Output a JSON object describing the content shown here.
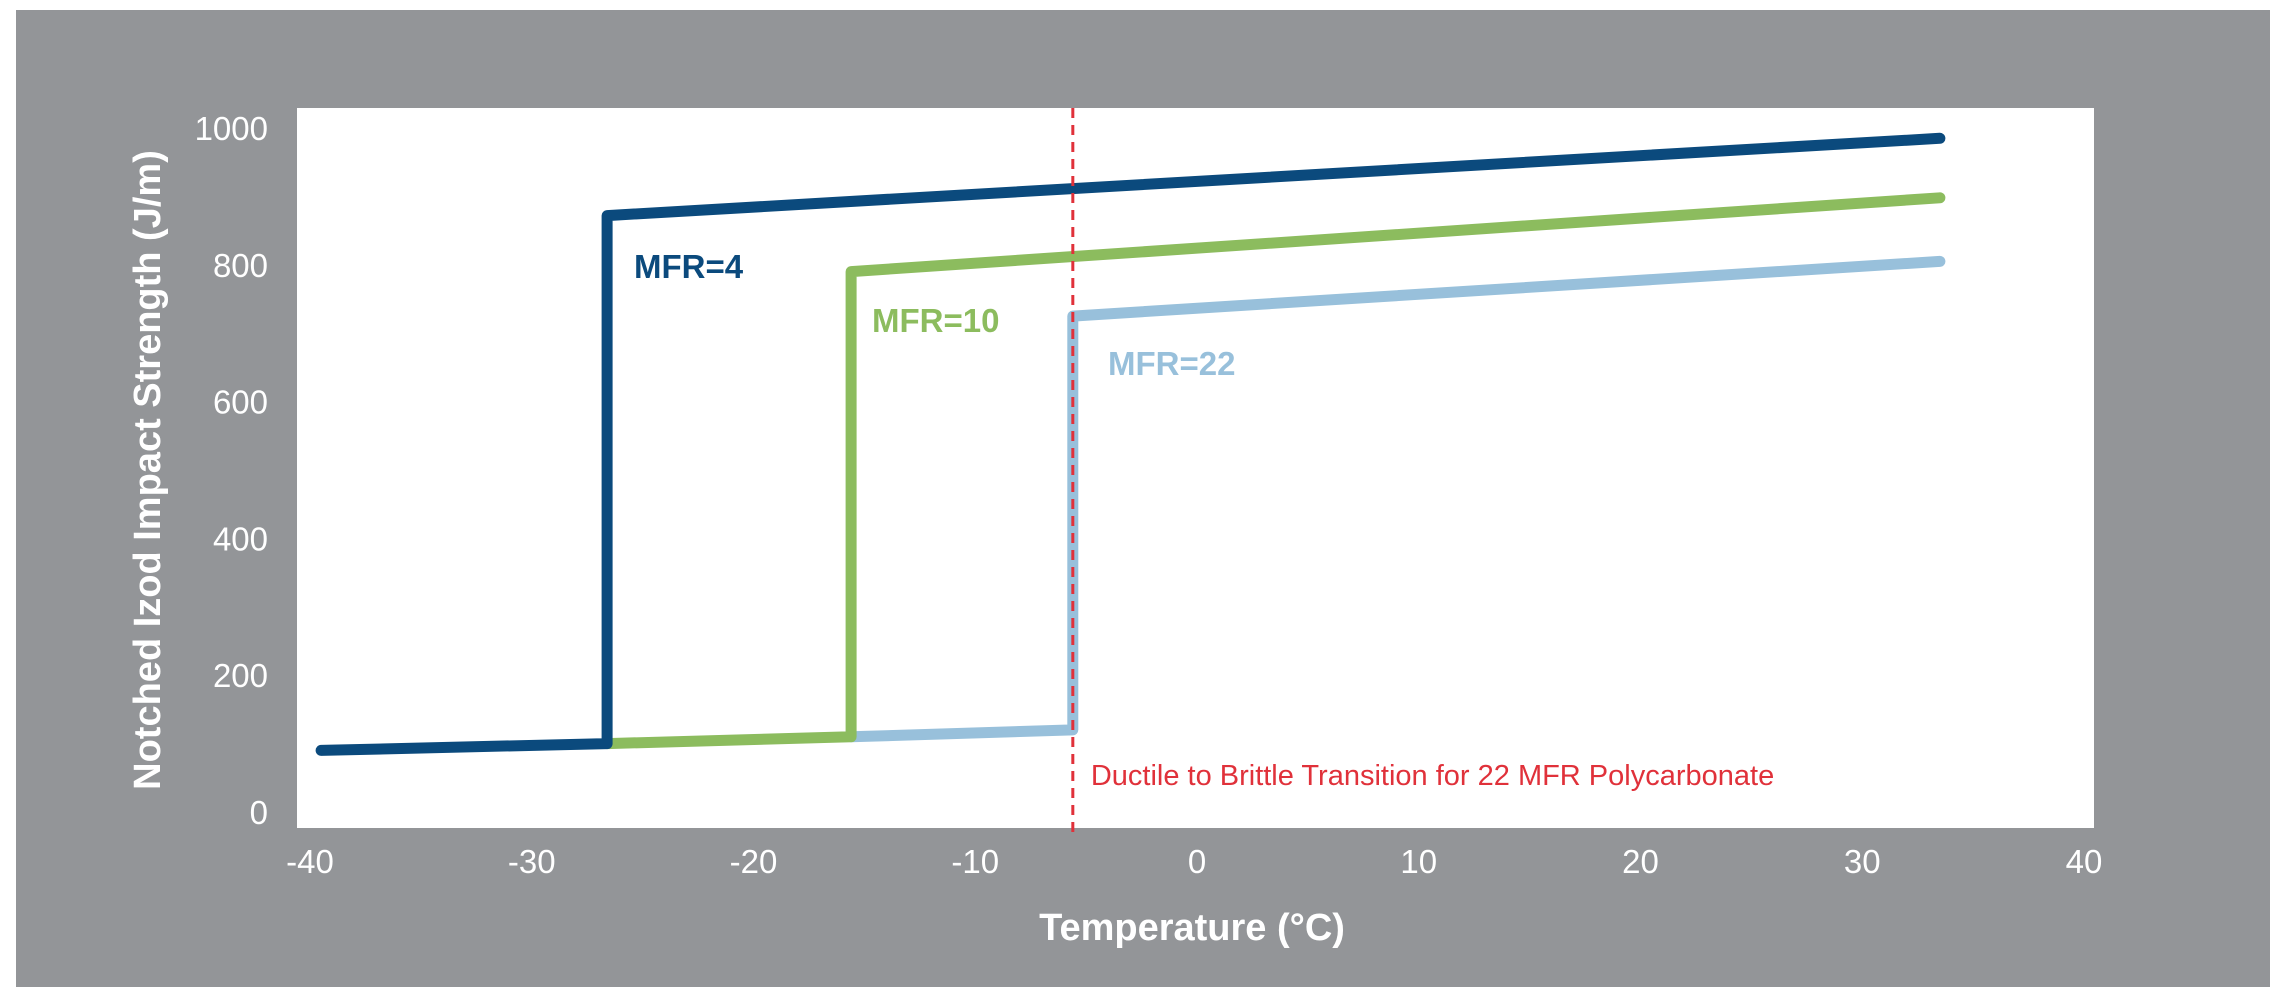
{
  "chart_data": {
    "type": "line",
    "title": "",
    "xlabel": "Temperature (°C)",
    "ylabel": "Notched Izod Impact Strength (J/m)",
    "xlim": [
      -40,
      40
    ],
    "ylim": [
      0,
      1000
    ],
    "xticks": [
      -40,
      -30,
      -20,
      -10,
      0,
      10,
      20,
      30,
      40
    ],
    "yticks": [
      0,
      200,
      400,
      600,
      800,
      1000
    ],
    "grid": false,
    "legend": "none",
    "background": "#939598",
    "plot_background": "#ffffff",
    "series": [
      {
        "name": "MFR=4",
        "color": "#0b4a7d",
        "points": [
          [
            -39.5,
            90
          ],
          [
            -26.6,
            100
          ],
          [
            -26.6,
            872
          ],
          [
            33.5,
            985
          ]
        ]
      },
      {
        "name": "MFR=10",
        "color": "#8cbc5e",
        "points": [
          [
            -26.6,
            100
          ],
          [
            -15.6,
            110
          ],
          [
            -15.6,
            790
          ],
          [
            33.5,
            898
          ]
        ]
      },
      {
        "name": "MFR=22",
        "color": "#98c0db",
        "points": [
          [
            -15.6,
            110
          ],
          [
            -5.6,
            120
          ],
          [
            -5.6,
            725
          ],
          [
            33.5,
            805
          ]
        ]
      }
    ],
    "annotations": [
      {
        "type": "vline",
        "x": -5.6,
        "color": "#e0313a",
        "style": "dashed",
        "text": "Ductile to Brittle Transition for 22 MFR Polycarbonate"
      }
    ]
  }
}
